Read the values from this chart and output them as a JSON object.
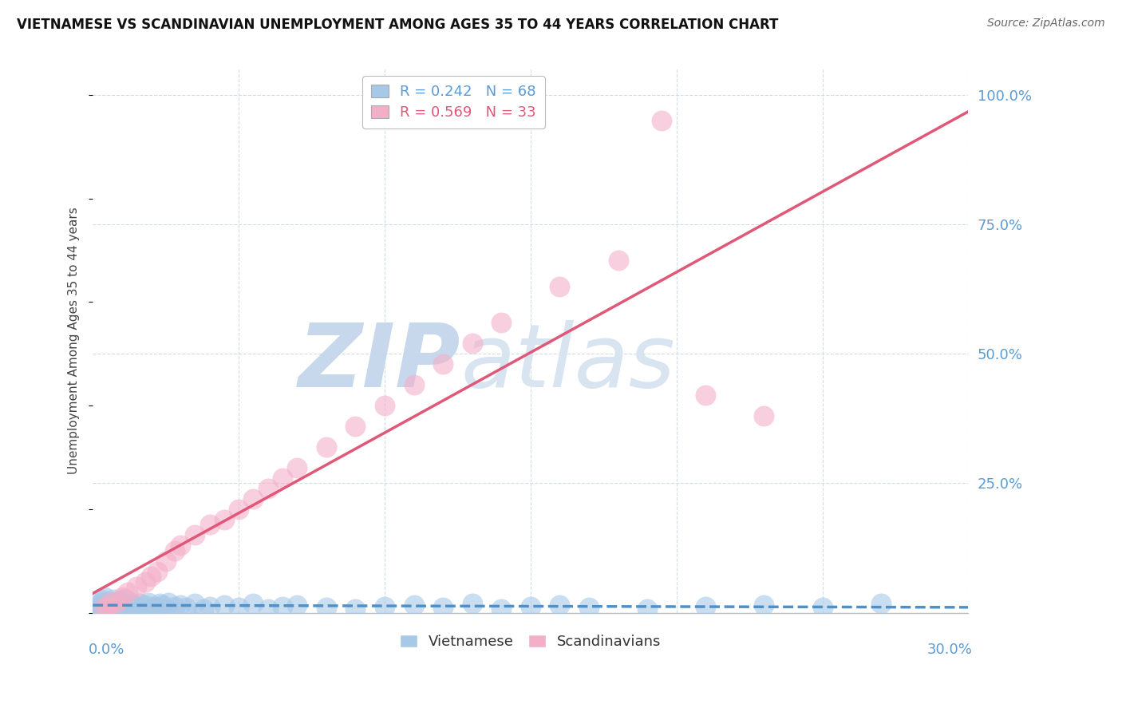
{
  "title": "VIETNAMESE VS SCANDINAVIAN UNEMPLOYMENT AMONG AGES 35 TO 44 YEARS CORRELATION CHART",
  "source": "Source: ZipAtlas.com",
  "ylabel": "Unemployment Among Ages 35 to 44 years",
  "xlim": [
    0.0,
    0.3
  ],
  "ylim": [
    0.0,
    1.05
  ],
  "viet_R": 0.242,
  "viet_N": 68,
  "scand_R": 0.569,
  "scand_N": 33,
  "viet_color": "#a8c8e8",
  "scand_color": "#f4afc8",
  "viet_line_color": "#5090c8",
  "scand_line_color": "#e05878",
  "legend_label_viet": "Vietnamese",
  "legend_label_scand": "Scandinavians",
  "scand_x": [
    0.004,
    0.006,
    0.008,
    0.01,
    0.012,
    0.015,
    0.018,
    0.02,
    0.022,
    0.025,
    0.028,
    0.03,
    0.035,
    0.04,
    0.045,
    0.05,
    0.055,
    0.06,
    0.065,
    0.07,
    0.08,
    0.09,
    0.1,
    0.11,
    0.12,
    0.13,
    0.14,
    0.16,
    0.18,
    0.195,
    0.21,
    0.23,
    0.005
  ],
  "scand_y": [
    0.01,
    0.02,
    0.02,
    0.03,
    0.04,
    0.05,
    0.06,
    0.07,
    0.08,
    0.1,
    0.12,
    0.13,
    0.15,
    0.17,
    0.18,
    0.2,
    0.22,
    0.24,
    0.26,
    0.28,
    0.32,
    0.36,
    0.4,
    0.44,
    0.48,
    0.52,
    0.56,
    0.63,
    0.68,
    0.95,
    0.42,
    0.38,
    0.01
  ],
  "viet_x_dense": [
    0.0,
    0.001,
    0.002,
    0.002,
    0.003,
    0.003,
    0.004,
    0.004,
    0.005,
    0.005,
    0.006,
    0.006,
    0.007,
    0.007,
    0.008,
    0.008,
    0.009,
    0.01,
    0.01,
    0.011,
    0.012,
    0.013,
    0.014,
    0.015,
    0.016,
    0.017,
    0.018,
    0.019,
    0.02,
    0.021,
    0.022,
    0.023,
    0.024,
    0.025,
    0.026,
    0.028,
    0.03,
    0.032,
    0.035,
    0.038,
    0.04,
    0.045,
    0.05,
    0.055,
    0.06,
    0.065,
    0.07,
    0.08,
    0.09,
    0.1,
    0.11,
    0.12,
    0.13,
    0.14,
    0.15,
    0.16,
    0.17,
    0.19,
    0.21,
    0.23,
    0.25,
    0.27,
    0.003,
    0.004,
    0.006,
    0.007,
    0.009,
    0.011
  ],
  "viet_y_dense": [
    0.008,
    0.01,
    0.015,
    0.005,
    0.012,
    0.02,
    0.008,
    0.018,
    0.01,
    0.022,
    0.015,
    0.005,
    0.02,
    0.01,
    0.008,
    0.018,
    0.012,
    0.015,
    0.025,
    0.01,
    0.008,
    0.02,
    0.015,
    0.01,
    0.018,
    0.005,
    0.015,
    0.02,
    0.008,
    0.012,
    0.01,
    0.018,
    0.015,
    0.008,
    0.02,
    0.012,
    0.015,
    0.01,
    0.018,
    0.008,
    0.012,
    0.015,
    0.01,
    0.018,
    0.008,
    0.012,
    0.015,
    0.01,
    0.008,
    0.012,
    0.015,
    0.01,
    0.018,
    0.008,
    0.012,
    0.015,
    0.01,
    0.008,
    0.012,
    0.015,
    0.01,
    0.018,
    0.025,
    0.03,
    0.018,
    0.025,
    0.022,
    0.028
  ]
}
